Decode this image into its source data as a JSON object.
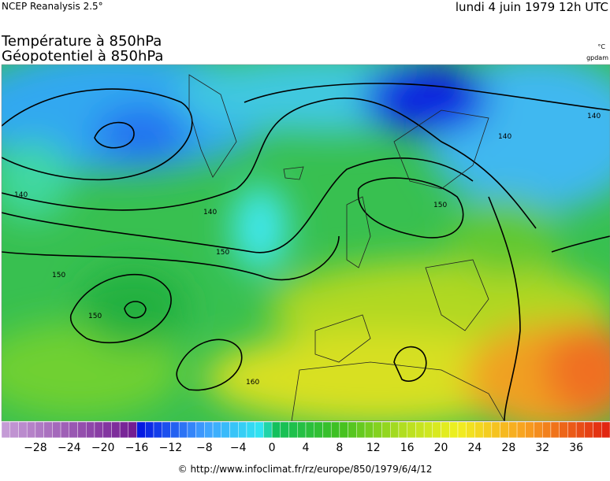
{
  "header": {
    "source": "NCEP Reanalysis 2.5°",
    "date": "lundi 4 juin 1979 12h UTC"
  },
  "titles": [
    "Température à 850hPa",
    "Géopotentiel à 850hPa"
  ],
  "units": [
    "°C",
    "gpdam"
  ],
  "contour_labels": [
    "140",
    "140",
    "140",
    "140",
    "150",
    "150",
    "150",
    "150",
    "160"
  ],
  "colorbar": {
    "labels": [
      "−28",
      "−24",
      "−20",
      "−16",
      "−12",
      "−8",
      "−4",
      "0",
      "4",
      "8",
      "12",
      "16",
      "20",
      "24",
      "28",
      "32",
      "36"
    ]
  },
  "footer": "© http://www.infoclimat.fr/rz/europe/850/1979/6/4/12"
}
